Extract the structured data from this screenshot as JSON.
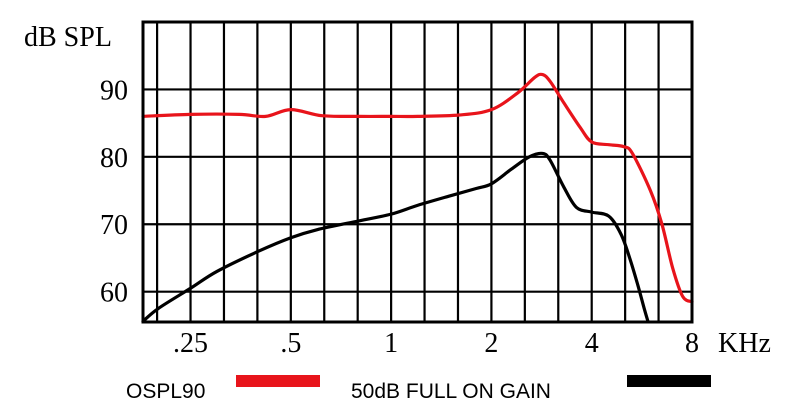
{
  "chart_data": {
    "type": "line",
    "ylabel": "dB SPL",
    "xlabel": "KHz",
    "x_scale": "log",
    "xlim": [
      0.18,
      8
    ],
    "ylim": [
      55.5,
      100
    ],
    "x_ticks": [
      {
        "value": 0.25,
        "label": ".25"
      },
      {
        "value": 0.5,
        "label": ".5"
      },
      {
        "value": 1,
        "label": "1"
      },
      {
        "value": 2,
        "label": "2"
      },
      {
        "value": 4,
        "label": "4"
      },
      {
        "value": 8,
        "label": "8"
      }
    ],
    "y_ticks": [
      {
        "value": 60,
        "label": "60"
      },
      {
        "value": 70,
        "label": "70"
      },
      {
        "value": 80,
        "label": "80"
      },
      {
        "value": 90,
        "label": "90"
      }
    ],
    "grid": true,
    "legend_position": "bottom",
    "series": [
      {
        "name": "OSPL90",
        "color": "#e8141b",
        "points": [
          [
            0.18,
            86.0
          ],
          [
            0.25,
            86.3
          ],
          [
            0.35,
            86.3
          ],
          [
            0.42,
            86.0
          ],
          [
            0.5,
            87.0
          ],
          [
            0.62,
            86.1
          ],
          [
            0.8,
            86.0
          ],
          [
            1.0,
            86.0
          ],
          [
            1.2,
            86.0
          ],
          [
            1.6,
            86.2
          ],
          [
            2.0,
            87.0
          ],
          [
            2.4,
            89.5
          ],
          [
            2.7,
            91.8
          ],
          [
            2.85,
            92.2
          ],
          [
            3.0,
            91.2
          ],
          [
            3.3,
            88.0
          ],
          [
            3.7,
            84.3
          ],
          [
            4.0,
            82.2
          ],
          [
            4.5,
            81.8
          ],
          [
            5.0,
            81.5
          ],
          [
            5.3,
            80.5
          ],
          [
            6.0,
            75.0
          ],
          [
            6.5,
            70.0
          ],
          [
            7.0,
            63.5
          ],
          [
            7.5,
            59.3
          ],
          [
            8.0,
            58.5
          ]
        ]
      },
      {
        "name": "50dB FULL ON GAIN",
        "color": "#000000",
        "points": [
          [
            0.18,
            55.6
          ],
          [
            0.2,
            57.5
          ],
          [
            0.25,
            60.5
          ],
          [
            0.3,
            63.0
          ],
          [
            0.4,
            66.0
          ],
          [
            0.5,
            68.0
          ],
          [
            0.6,
            69.2
          ],
          [
            0.8,
            70.5
          ],
          [
            1.0,
            71.5
          ],
          [
            1.2,
            72.8
          ],
          [
            1.5,
            74.2
          ],
          [
            1.8,
            75.3
          ],
          [
            2.0,
            76.0
          ],
          [
            2.3,
            78.2
          ],
          [
            2.6,
            80.0
          ],
          [
            2.85,
            80.5
          ],
          [
            3.0,
            79.5
          ],
          [
            3.3,
            75.5
          ],
          [
            3.6,
            72.5
          ],
          [
            4.0,
            71.8
          ],
          [
            4.5,
            71.2
          ],
          [
            4.9,
            68.5
          ],
          [
            5.2,
            65.0
          ],
          [
            5.5,
            61.0
          ],
          [
            5.75,
            57.5
          ],
          [
            5.9,
            55.6
          ]
        ]
      }
    ]
  },
  "legend": {
    "items": [
      {
        "label": "OSPL90",
        "color": "#e8141b"
      },
      {
        "label": "50dB FULL ON GAIN",
        "color": "#000000"
      }
    ]
  }
}
